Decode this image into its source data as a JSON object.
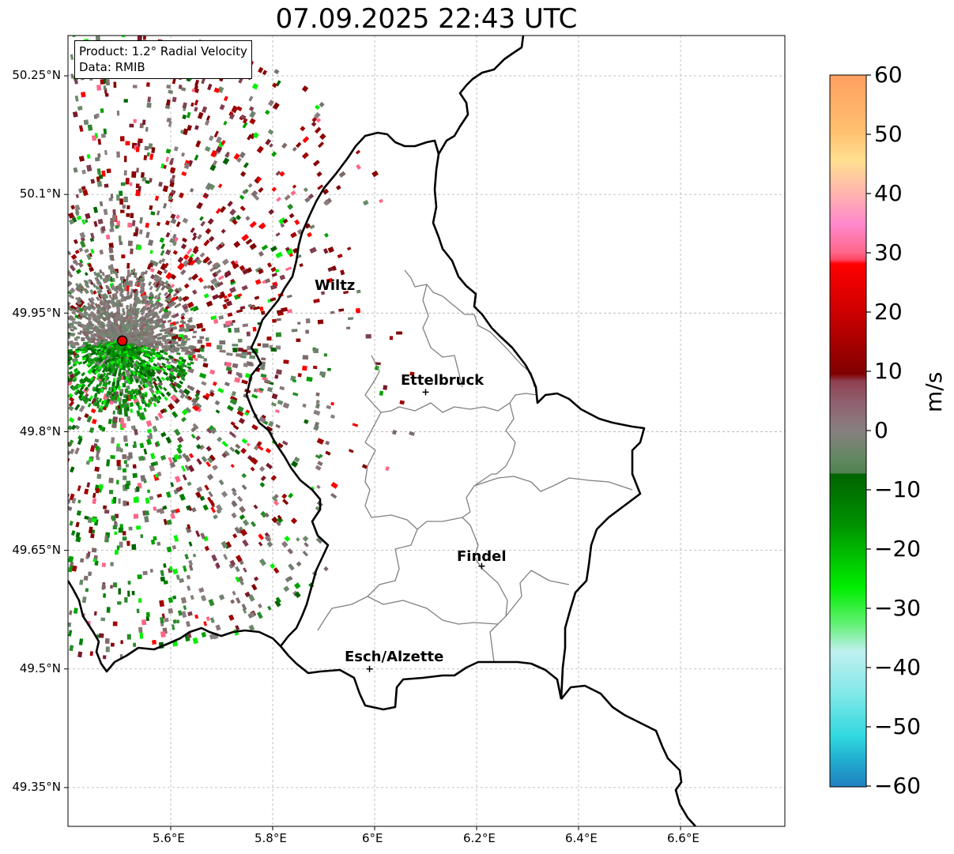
{
  "title": "07.09.2025 22:43 UTC",
  "info": {
    "product": "Product: 1.2° Radial Velocity",
    "source": "Data: RMIB"
  },
  "axes": {
    "lat_labels": [
      "50.25°N",
      "50.1°N",
      "49.95°N",
      "49.8°N",
      "49.65°N",
      "49.5°N",
      "49.35°N"
    ],
    "lon_labels": [
      "5.6°E",
      "5.8°E",
      "6°E",
      "6.2°E",
      "6.4°E",
      "6.6°E"
    ]
  },
  "cities": [
    {
      "name": "Wiltz",
      "lon": 5.94,
      "lat": 49.97
    },
    {
      "name": "Ettelbruck",
      "lon": 6.1,
      "lat": 49.85
    },
    {
      "name": "Findel",
      "lon": 6.21,
      "lat": 49.63
    },
    {
      "name": "Esch/Alzette",
      "lon": 5.99,
      "lat": 49.5
    }
  ],
  "radar_site": {
    "lon": 5.505,
    "lat": 49.915
  },
  "colorbar": {
    "unit": "m/s",
    "ticks": [
      "60",
      "50",
      "40",
      "30",
      "20",
      "10",
      "0",
      "−10",
      "−20",
      "−30",
      "−40",
      "−50",
      "−60"
    ],
    "vmin": -60,
    "vmax": 60
  },
  "colors": {
    "approaching_dark": "#006400",
    "approaching_bright": "#00ee00",
    "neutral": "#888080",
    "receding_dark": "#800000",
    "receding_bright": "#ff0000",
    "pink": "#ff6688"
  }
}
